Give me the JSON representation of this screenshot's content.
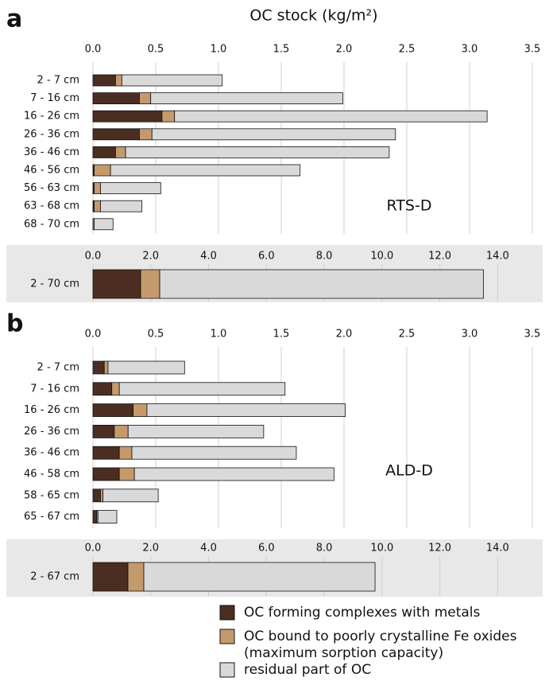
{
  "chart_data": [
    {
      "type": "bar",
      "orientation": "horizontal",
      "stacked": true,
      "panel": "a",
      "title": "OC stock (kg/m²)",
      "annotation": "RTS-D",
      "categories": [
        "2 - 7 cm",
        "7 - 16 cm",
        "16 - 26 cm",
        "26 - 36 cm",
        "36 - 46 cm",
        "46 - 56 cm",
        "56 - 63 cm",
        "63 - 68 cm",
        "68 - 70 cm"
      ],
      "series": [
        {
          "name": "OC forming complexes with metals",
          "color": "#4b2d22",
          "values": [
            0.18,
            0.37,
            0.55,
            0.37,
            0.18,
            0.01,
            0.01,
            0.01,
            0.0
          ]
        },
        {
          "name": "OC bound to poorly crystalline Fe oxides\n(maximum sorption capacity)",
          "color": "#c49a6c",
          "values": [
            0.05,
            0.09,
            0.1,
            0.1,
            0.08,
            0.13,
            0.05,
            0.05,
            0.01
          ]
        },
        {
          "name": "residual part of OC",
          "color": "#d9d9d9",
          "values": [
            0.8,
            1.53,
            2.49,
            1.94,
            2.1,
            1.51,
            0.48,
            0.33,
            0.15
          ]
        }
      ],
      "xlim": [
        0,
        3.5
      ],
      "xticks": [
        {
          "value": 0,
          "label": "0.0"
        },
        0.5,
        {
          "value": 1,
          "label": "1.0"
        },
        1.5,
        {
          "value": 2,
          "label": "2.0"
        },
        2.5,
        {
          "value": 3,
          "label": "3.0"
        },
        3.5
      ],
      "grid": true
    },
    {
      "type": "bar",
      "orientation": "horizontal",
      "stacked": true,
      "categories": [
        "2 - 70 cm"
      ],
      "series": [
        {
          "color": "#4b2d22",
          "values": [
            1.65
          ]
        },
        {
          "color": "#c49a6c",
          "values": [
            0.66
          ]
        },
        {
          "color": "#d9d9d9",
          "values": [
            11.2
          ]
        }
      ],
      "xlim": [
        0,
        15.2
      ],
      "xticks": [
        {
          "value": 0,
          "label": "0.0"
        },
        {
          "value": 2,
          "label": "2.0"
        },
        {
          "value": 4,
          "label": "4.0"
        },
        {
          "value": 6,
          "label": "6.0"
        },
        {
          "value": 8,
          "label": "8.0"
        },
        {
          "value": 10,
          "label": "10.0"
        },
        {
          "value": 12,
          "label": "12.0"
        },
        {
          "value": 14,
          "label": "14.0"
        }
      ],
      "grid": true
    },
    {
      "type": "bar",
      "orientation": "horizontal",
      "stacked": true,
      "panel": "b",
      "annotation": "ALD-D",
      "categories": [
        "2 - 7 cm",
        "7 - 16 cm",
        "16 - 26 cm",
        "26 - 36 cm",
        "36 - 46 cm",
        "46 - 58 cm",
        "58 - 65 cm",
        "65 - 67 cm"
      ],
      "series": [
        {
          "color": "#4b2d22",
          "values": [
            0.09,
            0.15,
            0.32,
            0.17,
            0.21,
            0.21,
            0.06,
            0.03
          ]
        },
        {
          "color": "#c49a6c",
          "values": [
            0.03,
            0.06,
            0.11,
            0.11,
            0.1,
            0.12,
            0.02,
            0.01
          ]
        },
        {
          "color": "#d9d9d9",
          "values": [
            0.61,
            1.32,
            1.58,
            1.08,
            1.31,
            1.59,
            0.44,
            0.15
          ]
        }
      ],
      "xlim": [
        0,
        3.5
      ],
      "xticks": [
        {
          "value": 0,
          "label": "0.0"
        },
        0.5,
        {
          "value": 1,
          "label": "1.0"
        },
        1.5,
        {
          "value": 2,
          "label": "2.0"
        },
        2.5,
        {
          "value": 3,
          "label": "3.0"
        },
        3.5
      ],
      "grid": true
    },
    {
      "type": "bar",
      "orientation": "horizontal",
      "stacked": true,
      "categories": [
        "2 - 67 cm"
      ],
      "series": [
        {
          "color": "#4b2d22",
          "values": [
            1.21
          ]
        },
        {
          "color": "#c49a6c",
          "values": [
            0.55
          ]
        },
        {
          "color": "#d9d9d9",
          "values": [
            8.0
          ]
        }
      ],
      "xlim": [
        0,
        15.2
      ],
      "xticks": [
        {
          "value": 0,
          "label": "0.0"
        },
        {
          "value": 2,
          "label": "2.0"
        },
        {
          "value": 4,
          "label": "4.0"
        },
        {
          "value": 6,
          "label": "6.0"
        },
        {
          "value": 8,
          "label": "8.0"
        },
        {
          "value": 10,
          "label": "10.0"
        },
        {
          "value": 12,
          "label": "12.0"
        },
        {
          "value": 14,
          "label": "14.0"
        }
      ],
      "grid": true
    }
  ]
}
